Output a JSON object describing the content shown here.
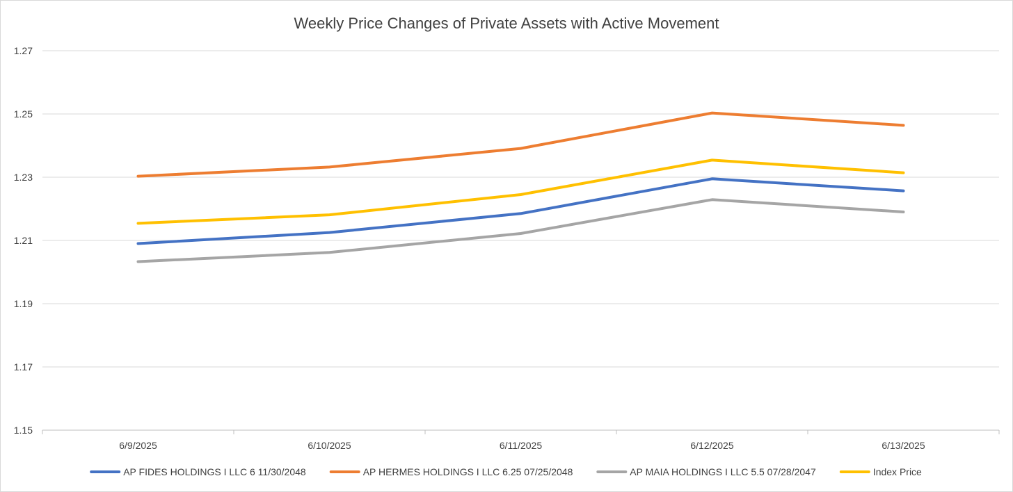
{
  "chart_data": {
    "type": "line",
    "title": "Weekly Price Changes of Private Assets with Active Movement",
    "xlabel": "",
    "ylabel": "",
    "categories": [
      "6/9/2025",
      "6/10/2025",
      "6/11/2025",
      "6/12/2025",
      "6/13/2025"
    ],
    "ylim": [
      1.15,
      1.27
    ],
    "yticks": [
      "1.15",
      "1.17",
      "1.19",
      "1.21",
      "1.23",
      "1.25",
      "1.27"
    ],
    "grid": true,
    "legend_position": "bottom",
    "series": [
      {
        "name": "AP FIDES HOLDINGS I LLC 6 11/30/2048",
        "color": "#4472C4",
        "values": [
          1.209,
          1.2125,
          1.2185,
          1.2295,
          1.2257
        ]
      },
      {
        "name": "AP HERMES HOLDINGS I LLC 6.25 07/25/2048",
        "color": "#ED7D31",
        "values": [
          1.2303,
          1.2332,
          1.2391,
          1.2503,
          1.2464
        ]
      },
      {
        "name": "AP MAIA HOLDINGS I LLC 5.5 07/28/2047",
        "color": "#A5A5A5",
        "values": [
          1.2033,
          1.2062,
          1.2122,
          1.2229,
          1.219
        ]
      },
      {
        "name": "Index Price",
        "color": "#FFC000",
        "values": [
          1.2154,
          1.2181,
          1.2245,
          1.2354,
          1.2314
        ]
      }
    ]
  }
}
